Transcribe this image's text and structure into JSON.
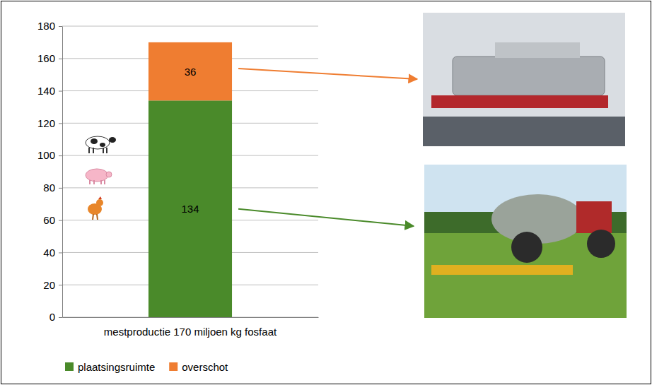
{
  "chart_data": {
    "type": "bar",
    "stacked": true,
    "data_labels": true,
    "grid": true,
    "legend": "bottom",
    "categories": [
      "mestproductie 170 miljoen kg fosfaat"
    ],
    "series": [
      {
        "name": "plaatsingsruimte",
        "color": "#4a8a2a",
        "values": [
          134
        ]
      },
      {
        "name": "overschot",
        "color": "#ef7d31",
        "values": [
          36
        ]
      }
    ],
    "ylim": [
      0,
      180
    ],
    "yticks": [
      0,
      20,
      40,
      60,
      80,
      100,
      120,
      140,
      160,
      180
    ]
  }
}
